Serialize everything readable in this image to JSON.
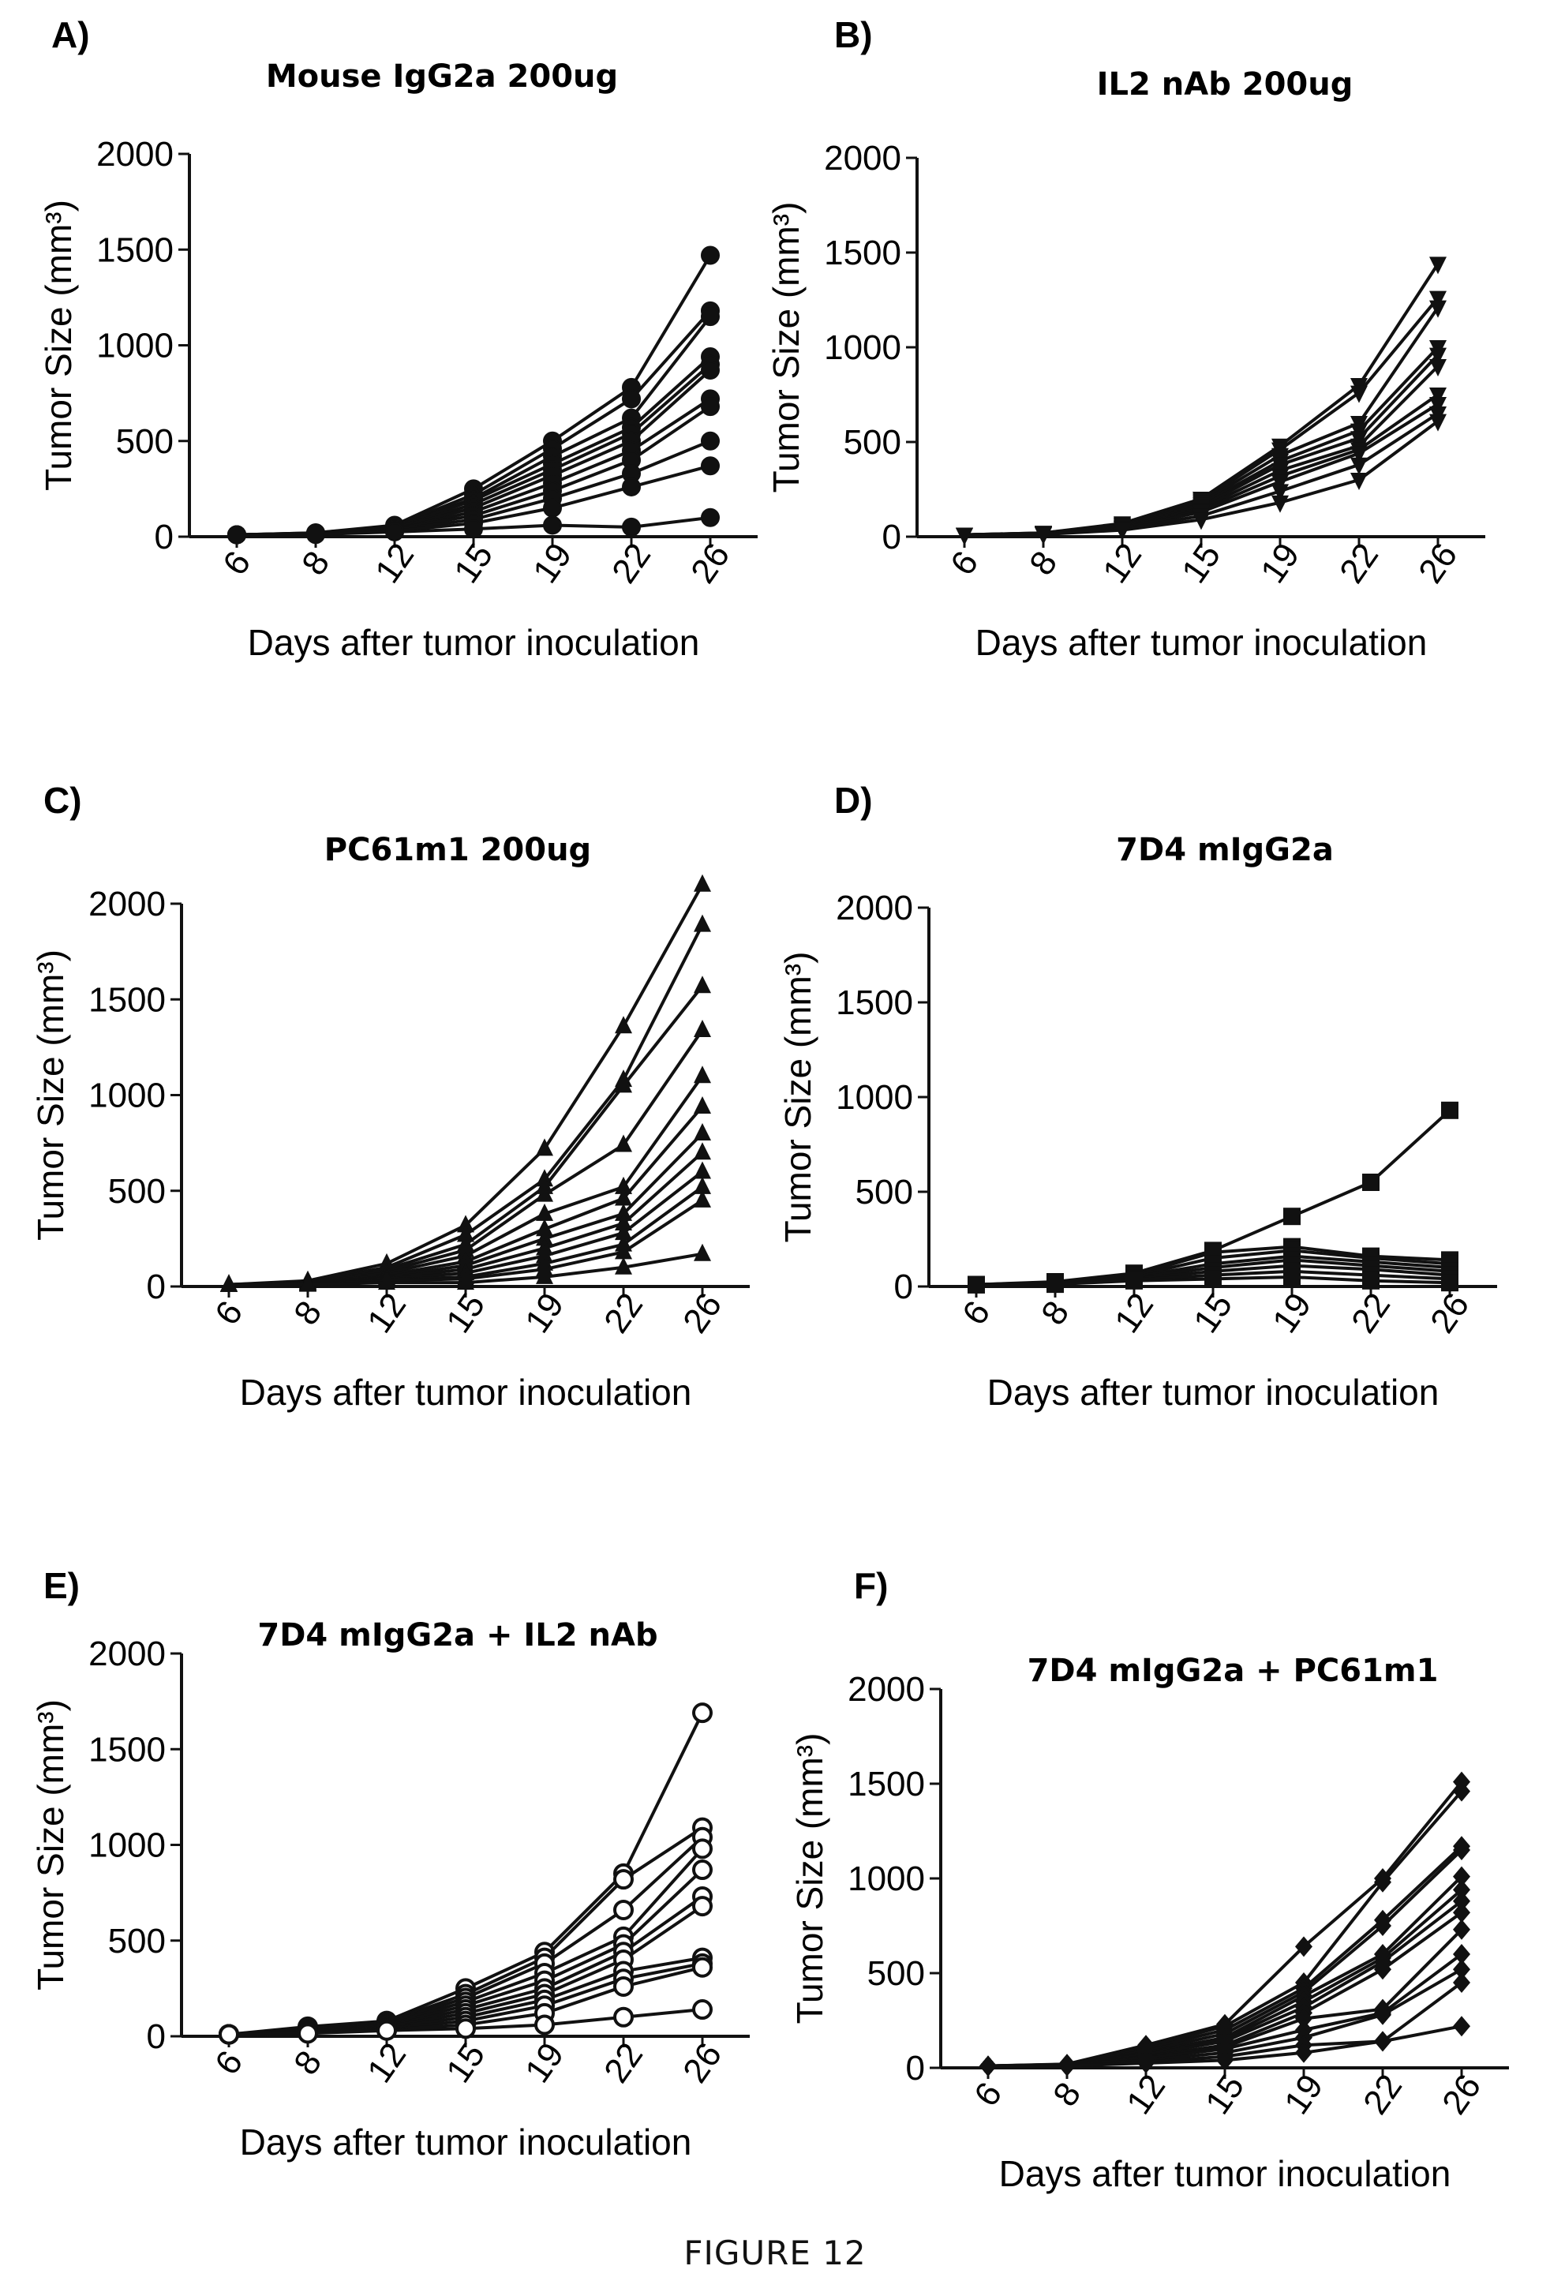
{
  "figure_caption": "FIGURE 12",
  "chart_data": [
    {
      "type": "line",
      "panel_label": "A)",
      "title": "Mouse IgG2a 200ug",
      "xlabel": "Days after tumor inoculation",
      "ylabel": "Tumor Size (mm³)",
      "categories": [
        "6",
        "8",
        "12",
        "15",
        "19",
        "22",
        "26"
      ],
      "ylim": [
        0,
        2000
      ],
      "yticks": [
        0,
        500,
        1000,
        1500,
        2000
      ],
      "marker": "circle-filled",
      "series": [
        {
          "values": [
            10,
            20,
            60,
            250,
            500,
            780,
            1470
          ]
        },
        {
          "values": [
            10,
            20,
            55,
            220,
            460,
            720,
            1180
          ]
        },
        {
          "values": [
            10,
            18,
            50,
            200,
            420,
            620,
            1150
          ]
        },
        {
          "values": [
            10,
            18,
            50,
            190,
            380,
            570,
            940
          ]
        },
        {
          "values": [
            10,
            16,
            45,
            170,
            350,
            540,
            900
          ]
        },
        {
          "values": [
            10,
            16,
            45,
            150,
            320,
            500,
            870
          ]
        },
        {
          "values": [
            10,
            15,
            40,
            130,
            280,
            450,
            720
          ]
        },
        {
          "values": [
            10,
            15,
            40,
            110,
            240,
            400,
            680
          ]
        },
        {
          "values": [
            10,
            14,
            35,
            90,
            200,
            330,
            500
          ]
        },
        {
          "values": [
            10,
            12,
            30,
            70,
            150,
            260,
            370
          ]
        },
        {
          "values": [
            10,
            12,
            25,
            40,
            60,
            50,
            100
          ]
        }
      ]
    },
    {
      "type": "line",
      "panel_label": "B)",
      "title": "IL2 nAb 200ug",
      "xlabel": "Days after tumor inoculation",
      "ylabel": "Tumor Size (mm³)",
      "categories": [
        "6",
        "8",
        "12",
        "15",
        "19",
        "22",
        "26"
      ],
      "ylim": [
        0,
        2000
      ],
      "yticks": [
        0,
        500,
        1000,
        1500,
        2000
      ],
      "marker": "triangle-down-filled",
      "series": [
        {
          "values": [
            10,
            20,
            70,
            200,
            480,
            800,
            1440
          ]
        },
        {
          "values": [
            10,
            20,
            65,
            190,
            460,
            760,
            1260
          ]
        },
        {
          "values": [
            10,
            18,
            60,
            180,
            430,
            600,
            1210
          ]
        },
        {
          "values": [
            10,
            18,
            60,
            170,
            400,
            560,
            1000
          ]
        },
        {
          "values": [
            10,
            16,
            55,
            160,
            380,
            520,
            960
          ]
        },
        {
          "values": [
            10,
            16,
            50,
            150,
            350,
            480,
            900
          ]
        },
        {
          "values": [
            10,
            15,
            45,
            140,
            320,
            460,
            750
          ]
        },
        {
          "values": [
            10,
            15,
            45,
            130,
            290,
            440,
            700
          ]
        },
        {
          "values": [
            10,
            14,
            40,
            110,
            240,
            380,
            650
          ]
        },
        {
          "values": [
            10,
            12,
            35,
            90,
            180,
            300,
            610
          ]
        }
      ]
    },
    {
      "type": "line",
      "panel_label": "C)",
      "title": "PC61m1 200ug",
      "xlabel": "Days after tumor inoculation",
      "ylabel": "Tumor Size (mm³)",
      "categories": [
        "6",
        "8",
        "12",
        "15",
        "19",
        "22",
        "26"
      ],
      "ylim": [
        0,
        2000
      ],
      "yticks": [
        0,
        500,
        1000,
        1500,
        2000
      ],
      "marker": "triangle-up-filled",
      "series": [
        {
          "values": [
            10,
            30,
            120,
            320,
            720,
            1360,
            2100
          ]
        },
        {
          "values": [
            10,
            25,
            100,
            270,
            560,
            1080,
            1890
          ]
        },
        {
          "values": [
            10,
            22,
            90,
            220,
            520,
            1050,
            1570
          ]
        },
        {
          "values": [
            10,
            20,
            80,
            190,
            480,
            740,
            1340
          ]
        },
        {
          "values": [
            10,
            18,
            70,
            160,
            380,
            520,
            1100
          ]
        },
        {
          "values": [
            10,
            16,
            60,
            130,
            300,
            460,
            940
          ]
        },
        {
          "values": [
            10,
            15,
            50,
            110,
            250,
            380,
            800
          ]
        },
        {
          "values": [
            10,
            14,
            45,
            90,
            200,
            330,
            700
          ]
        },
        {
          "values": [
            10,
            13,
            40,
            70,
            160,
            280,
            600
          ]
        },
        {
          "values": [
            10,
            12,
            35,
            50,
            120,
            220,
            520
          ]
        },
        {
          "values": [
            10,
            12,
            30,
            40,
            90,
            180,
            450
          ]
        },
        {
          "values": [
            10,
            10,
            20,
            20,
            50,
            100,
            170
          ]
        }
      ]
    },
    {
      "type": "line",
      "panel_label": "D)",
      "title": "7D4 mIgG2a",
      "xlabel": "Days after tumor inoculation",
      "ylabel": "Tumor Size (mm³)",
      "categories": [
        "6",
        "8",
        "12",
        "15",
        "19",
        "22",
        "26"
      ],
      "ylim": [
        0,
        2000
      ],
      "yticks": [
        0,
        500,
        1000,
        1500,
        2000
      ],
      "marker": "square-filled",
      "series": [
        {
          "values": [
            10,
            25,
            70,
            190,
            370,
            550,
            930
          ]
        },
        {
          "values": [
            10,
            22,
            60,
            180,
            210,
            160,
            140
          ]
        },
        {
          "values": [
            10,
            20,
            55,
            150,
            190,
            150,
            120
          ]
        },
        {
          "values": [
            10,
            18,
            50,
            120,
            160,
            130,
            100
          ]
        },
        {
          "values": [
            10,
            16,
            45,
            100,
            140,
            110,
            80
          ]
        },
        {
          "values": [
            10,
            15,
            40,
            80,
            110,
            90,
            60
          ]
        },
        {
          "values": [
            10,
            14,
            35,
            60,
            80,
            60,
            40
          ]
        },
        {
          "values": [
            10,
            12,
            30,
            40,
            50,
            30,
            20
          ]
        }
      ]
    },
    {
      "type": "line",
      "panel_label": "E)",
      "title": "7D4 mIgG2a + IL2 nAb",
      "xlabel": "Days after tumor inoculation",
      "ylabel": "Tumor Size (mm³)",
      "categories": [
        "6",
        "8",
        "12",
        "15",
        "19",
        "22",
        "26"
      ],
      "ylim": [
        0,
        2000
      ],
      "yticks": [
        0,
        500,
        1000,
        1500,
        2000
      ],
      "marker": "circle-open",
      "series": [
        {
          "values": [
            10,
            50,
            80,
            250,
            440,
            850,
            1690
          ]
        },
        {
          "values": [
            10,
            45,
            75,
            220,
            410,
            820,
            1090
          ]
        },
        {
          "values": [
            10,
            40,
            70,
            200,
            380,
            660,
            1040
          ]
        },
        {
          "values": [
            10,
            35,
            65,
            180,
            330,
            520,
            980
          ]
        },
        {
          "values": [
            10,
            30,
            60,
            160,
            290,
            480,
            870
          ]
        },
        {
          "values": [
            10,
            28,
            55,
            140,
            250,
            440,
            730
          ]
        },
        {
          "values": [
            10,
            25,
            50,
            120,
            220,
            400,
            680
          ]
        },
        {
          "values": [
            10,
            22,
            45,
            100,
            190,
            340,
            410
          ]
        },
        {
          "values": [
            10,
            20,
            40,
            80,
            160,
            300,
            380
          ]
        },
        {
          "values": [
            10,
            18,
            35,
            60,
            120,
            260,
            360
          ]
        },
        {
          "values": [
            10,
            15,
            30,
            40,
            60,
            100,
            140
          ]
        }
      ]
    },
    {
      "type": "line",
      "panel_label": "F)",
      "title": "7D4 mIgG2a + PC61m1",
      "xlabel": "Days after tumor inoculation",
      "ylabel": "Tumor Size (mm³)",
      "categories": [
        "6",
        "8",
        "12",
        "15",
        "19",
        "22",
        "26"
      ],
      "ylim": [
        0,
        2000
      ],
      "yticks": [
        0,
        500,
        1000,
        1500,
        2000
      ],
      "marker": "diamond-filled",
      "series": [
        {
          "values": [
            10,
            20,
            120,
            230,
            640,
            1000,
            1510
          ]
        },
        {
          "values": [
            10,
            18,
            110,
            220,
            450,
            980,
            1460
          ]
        },
        {
          "values": [
            10,
            18,
            100,
            200,
            420,
            780,
            1170
          ]
        },
        {
          "values": [
            10,
            16,
            90,
            180,
            400,
            750,
            1150
          ]
        },
        {
          "values": [
            10,
            16,
            80,
            160,
            380,
            600,
            1010
          ]
        },
        {
          "values": [
            10,
            15,
            75,
            150,
            350,
            580,
            940
          ]
        },
        {
          "values": [
            10,
            14,
            70,
            140,
            320,
            560,
            880
          ]
        },
        {
          "values": [
            10,
            14,
            60,
            120,
            290,
            520,
            820
          ]
        },
        {
          "values": [
            10,
            13,
            55,
            110,
            260,
            310,
            730
          ]
        },
        {
          "values": [
            10,
            12,
            50,
            100,
            200,
            290,
            600
          ]
        },
        {
          "values": [
            10,
            12,
            40,
            80,
            160,
            280,
            520
          ]
        },
        {
          "values": [
            10,
            10,
            30,
            60,
            120,
            140,
            450
          ]
        },
        {
          "values": [
            10,
            10,
            25,
            40,
            80,
            140,
            220
          ]
        }
      ]
    }
  ]
}
